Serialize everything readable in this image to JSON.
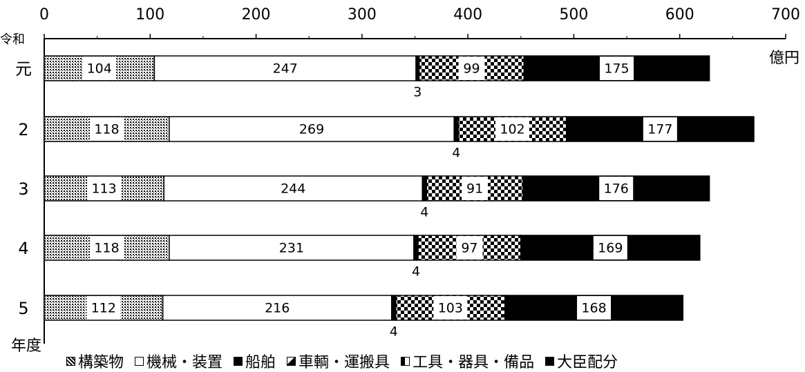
{
  "chart_data": {
    "type": "bar",
    "orientation": "horizontal",
    "stacked": true,
    "categories": [
      "元",
      "2",
      "3",
      "4",
      "5"
    ],
    "ylabel_top": "令和",
    "ylabel_bottom": "年度",
    "unit": "億円",
    "xlim": [
      0,
      700
    ],
    "xticks": [
      "0",
      "100",
      "200",
      "300",
      "400",
      "500",
      "600",
      "700"
    ],
    "series": [
      {
        "name": "構築物",
        "values": [
          104,
          118,
          113,
          118,
          112
        ]
      },
      {
        "name": "機械・装置",
        "values": [
          247,
          269,
          244,
          231,
          216
        ]
      },
      {
        "name": "船舶",
        "values": [
          3,
          4,
          4,
          4,
          4
        ]
      },
      {
        "name": "車輌・運搬具",
        "values": [
          0,
          0,
          0,
          0,
          0
        ]
      },
      {
        "name": "工具・器具・備品",
        "values": [
          99,
          102,
          91,
          97,
          103
        ]
      },
      {
        "name": "大臣配分",
        "values": [
          175,
          177,
          176,
          169,
          168
        ]
      }
    ],
    "value_labels": [
      {
        "category": "元",
        "labels": [
          "104",
          "247",
          "3",
          "99",
          "175"
        ]
      },
      {
        "category": "2",
        "labels": [
          "118",
          "269",
          "4",
          "102",
          "177"
        ]
      },
      {
        "category": "3",
        "labels": [
          "113",
          "244",
          "4",
          "91",
          "176"
        ]
      },
      {
        "category": "4",
        "labels": [
          "118",
          "231",
          "4",
          "97",
          "169"
        ]
      },
      {
        "category": "5",
        "labels": [
          "112",
          "216",
          "4",
          "103",
          "168"
        ]
      }
    ],
    "legend_position": "bottom"
  },
  "legend": {
    "items": [
      {
        "key": "s1",
        "label": "構築物"
      },
      {
        "key": "s2",
        "label": "機械・装置"
      },
      {
        "key": "s3",
        "label": "船舶"
      },
      {
        "key": "s4",
        "label": "車輌・運搬具"
      },
      {
        "key": "s5",
        "label": "工具・器具・備品"
      },
      {
        "key": "s6",
        "label": "大臣配分"
      }
    ]
  }
}
